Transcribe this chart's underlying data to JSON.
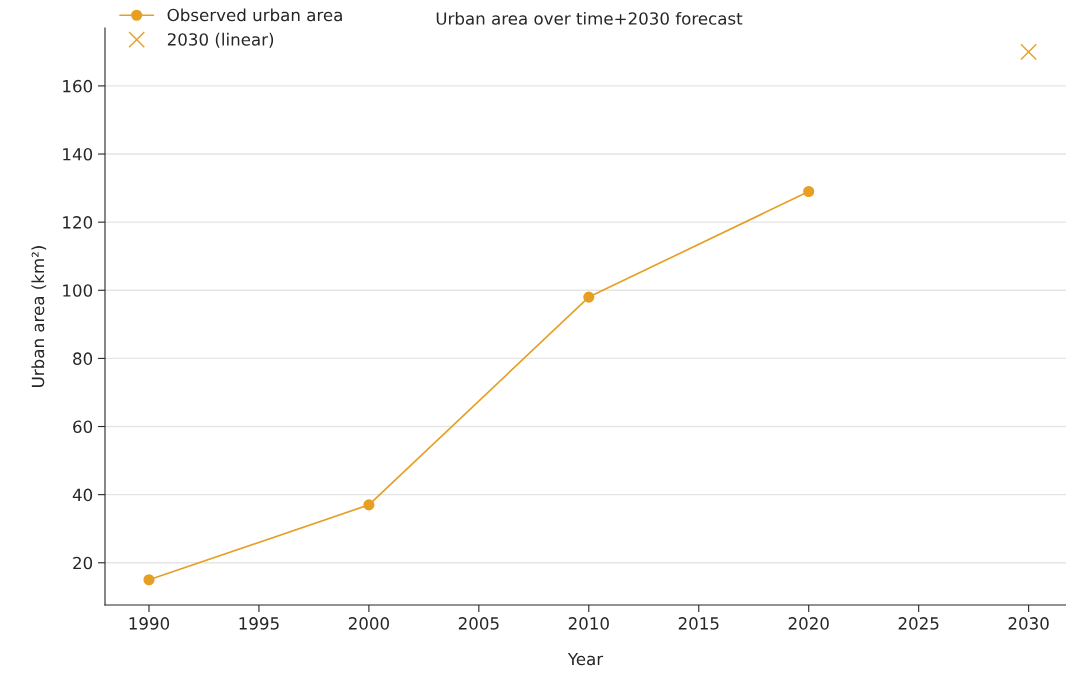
{
  "chart_data": {
    "type": "line",
    "title": "Urban area over time+2030 forecast",
    "xlabel": "Year",
    "ylabel": "Urban area (km²)",
    "series": [
      {
        "name": "Observed urban area",
        "marker": "circle",
        "color": "#e69f24",
        "x": [
          1990,
          2000,
          2010,
          2020
        ],
        "values": [
          15,
          37,
          98,
          129
        ]
      },
      {
        "name": "2030 (linear)",
        "type": "scatter",
        "marker": "cross",
        "color": "#e69f24",
        "x": [
          2030
        ],
        "values": [
          170
        ]
      }
    ],
    "xlim": [
      1988,
      2031.7
    ],
    "ylim": [
      7.6,
      177
    ],
    "xticks": [
      1990,
      1995,
      2000,
      2005,
      2010,
      2015,
      2020,
      2025,
      2030
    ],
    "yticks": [
      20,
      40,
      60,
      80,
      100,
      120,
      140,
      160
    ],
    "grid": "y",
    "legend": "top left"
  }
}
